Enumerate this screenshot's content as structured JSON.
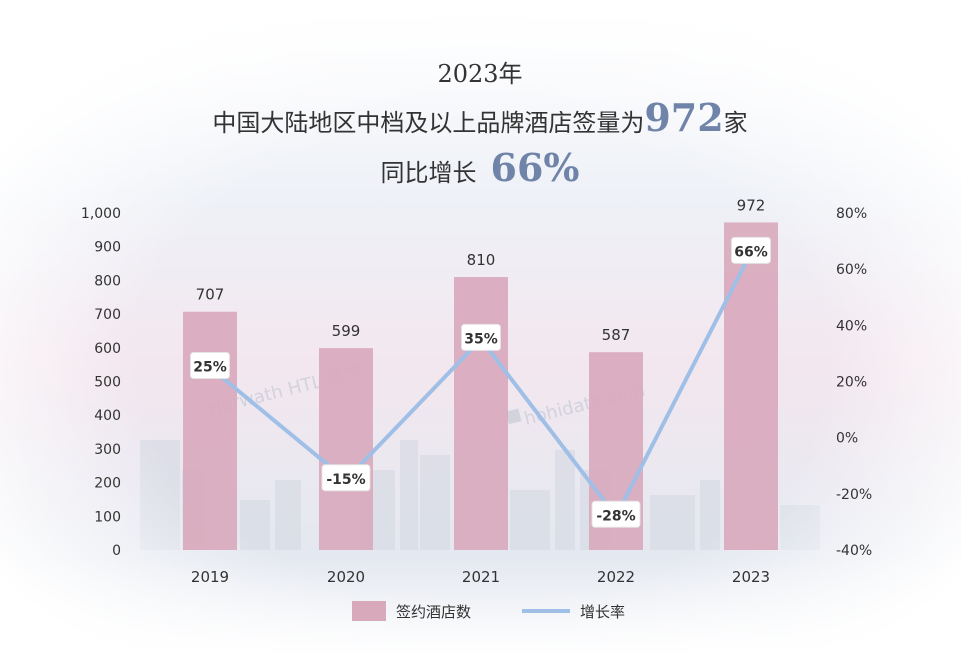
{
  "title": {
    "line1": "2023年",
    "line2_prefix": "中国大陆地区中档及以上品牌酒店签量为",
    "line2_number": "972",
    "line2_suffix": "家",
    "line3_prefix": "同比增长",
    "line3_number": "66%"
  },
  "watermarks": {
    "horwath": "Horwath HTL 浩华",
    "hohidata": "hohidata.com"
  },
  "colors": {
    "bar": "#d8a9bb",
    "line": "#9fbfe6",
    "highlight": "#6f84a8"
  },
  "chart_data": {
    "type": "bar",
    "categories": [
      "2019",
      "2020",
      "2021",
      "2022",
      "2023"
    ],
    "series": [
      {
        "name": "签约酒店数",
        "type": "bar",
        "axis": "left",
        "values": [
          707,
          599,
          810,
          587,
          972
        ],
        "labels": [
          "707",
          "599",
          "810",
          "587",
          "972"
        ]
      },
      {
        "name": "增长率",
        "type": "line",
        "axis": "right",
        "values": [
          25,
          -15,
          35,
          -28,
          66
        ],
        "labels": [
          "25%",
          "-15%",
          "35%",
          "-28%",
          "66%"
        ]
      }
    ],
    "left_axis": {
      "ylim": [
        0,
        1000
      ],
      "ticks": [
        0,
        100,
        200,
        300,
        400,
        500,
        600,
        700,
        800,
        900,
        1000
      ],
      "tick_labels": [
        "0",
        "100",
        "200",
        "300",
        "400",
        "500",
        "600",
        "700",
        "800",
        "900",
        "1,000"
      ]
    },
    "right_axis": {
      "ylim": [
        -40,
        80
      ],
      "ticks": [
        -40,
        -20,
        0,
        20,
        40,
        60,
        80
      ],
      "tick_labels": [
        "-40%",
        "-20%",
        "0%",
        "20%",
        "40%",
        "60%",
        "80%"
      ]
    },
    "grid": false,
    "legend": {
      "placement": "bottom",
      "entries": [
        "签约酒店数",
        "增长率"
      ]
    }
  }
}
